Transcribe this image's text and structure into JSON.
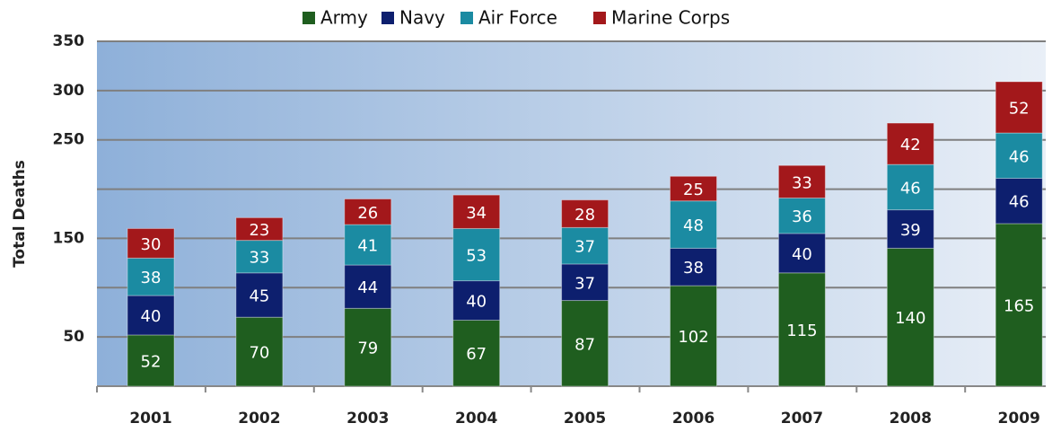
{
  "chart_data": {
    "type": "stacked_bar",
    "y_label": "Total Deaths",
    "categories": [
      "2001",
      "2002",
      "2003",
      "2004",
      "2005",
      "2006",
      "2007",
      "2008",
      "2009"
    ],
    "series": [
      {
        "name": "Army",
        "color": "#1f5e1f",
        "values": [
          52,
          70,
          79,
          67,
          87,
          102,
          115,
          140,
          165
        ]
      },
      {
        "name": "Navy",
        "color": "#0d1f6e",
        "values": [
          40,
          45,
          44,
          40,
          37,
          38,
          40,
          39,
          46
        ]
      },
      {
        "name": "Air Force",
        "color": "#1b8ba2",
        "values": [
          38,
          33,
          41,
          53,
          37,
          48,
          36,
          46,
          46
        ]
      },
      {
        "name": "Marine Corps",
        "color": "#a3181b",
        "values": [
          30,
          23,
          26,
          34,
          28,
          25,
          33,
          42,
          52
        ]
      }
    ],
    "ylim": [
      0,
      350
    ],
    "yticks": [
      50,
      150,
      250,
      300,
      350
    ],
    "minor_yticks": [
      0,
      100,
      200
    ],
    "grid": true,
    "legend": "top"
  }
}
